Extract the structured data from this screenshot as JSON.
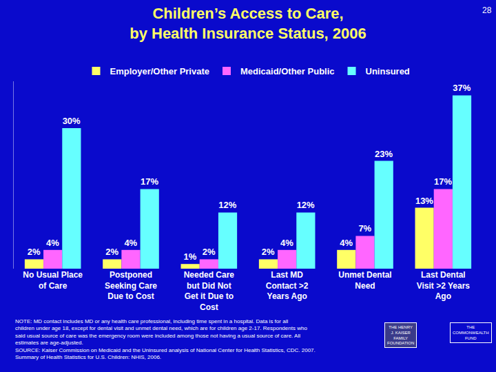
{
  "chart_data": {
    "type": "bar",
    "title": "Children’s Access to Care, by Health Insurance Status, 2006",
    "page_number": "28",
    "categories": [
      "No Usual Place of Care",
      "Postponed Seeking Care Due to Cost",
      "Needed Care but Did Not Get it Due to Cost",
      "Last MD Contact >2 Years Ago",
      "Unmet Dental Need",
      "Last Dental Visit >2 Years Ago"
    ],
    "series": [
      {
        "name": "Employer/Other Private",
        "color": "#ffff66",
        "values": [
          2,
          2,
          1,
          2,
          4,
          13
        ],
        "value_labels": [
          "2%",
          "2%",
          "1%",
          "2%",
          "4%",
          "13%"
        ]
      },
      {
        "name": "Medicaid/Other Public",
        "color": "#ff66ff",
        "values": [
          4,
          4,
          2,
          4,
          7,
          17
        ],
        "value_labels": [
          "4%",
          "4%",
          "2%",
          "4%",
          "7%",
          "17%"
        ]
      },
      {
        "name": "Uninsured",
        "color": "#66ffff",
        "values": [
          30,
          17,
          12,
          12,
          23,
          37
        ],
        "value_labels": [
          "30%",
          "17%",
          "12%",
          "12%",
          "23%",
          "37%"
        ]
      }
    ],
    "ylim": [
      0,
      40
    ],
    "data_labels": true,
    "tick_labels": "x",
    "grid": false,
    "legend": "top",
    "note": "NOTE: MD contact includes MD or any health care professional, including time spent in a hospital. Data is for all children under age 18, except for dental visit and unmet dental need, which are for children age 2-17. Respondents who said usual source of care was the emergency room were included among those not having a usual source of care. All estimates are age-adjusted.",
    "source": "SOURCE: Kaiser Commission on Medicaid and the Uninsured analysis of National Center for Health Statistics, CDC. 2007. Summary of Health Statistics for U.S. Children: NHIS, 2006.",
    "logos": [
      "THE HENRY J. KAISER FAMILY FOUNDATION",
      "THE COMMONWEALTH FUND"
    ]
  }
}
